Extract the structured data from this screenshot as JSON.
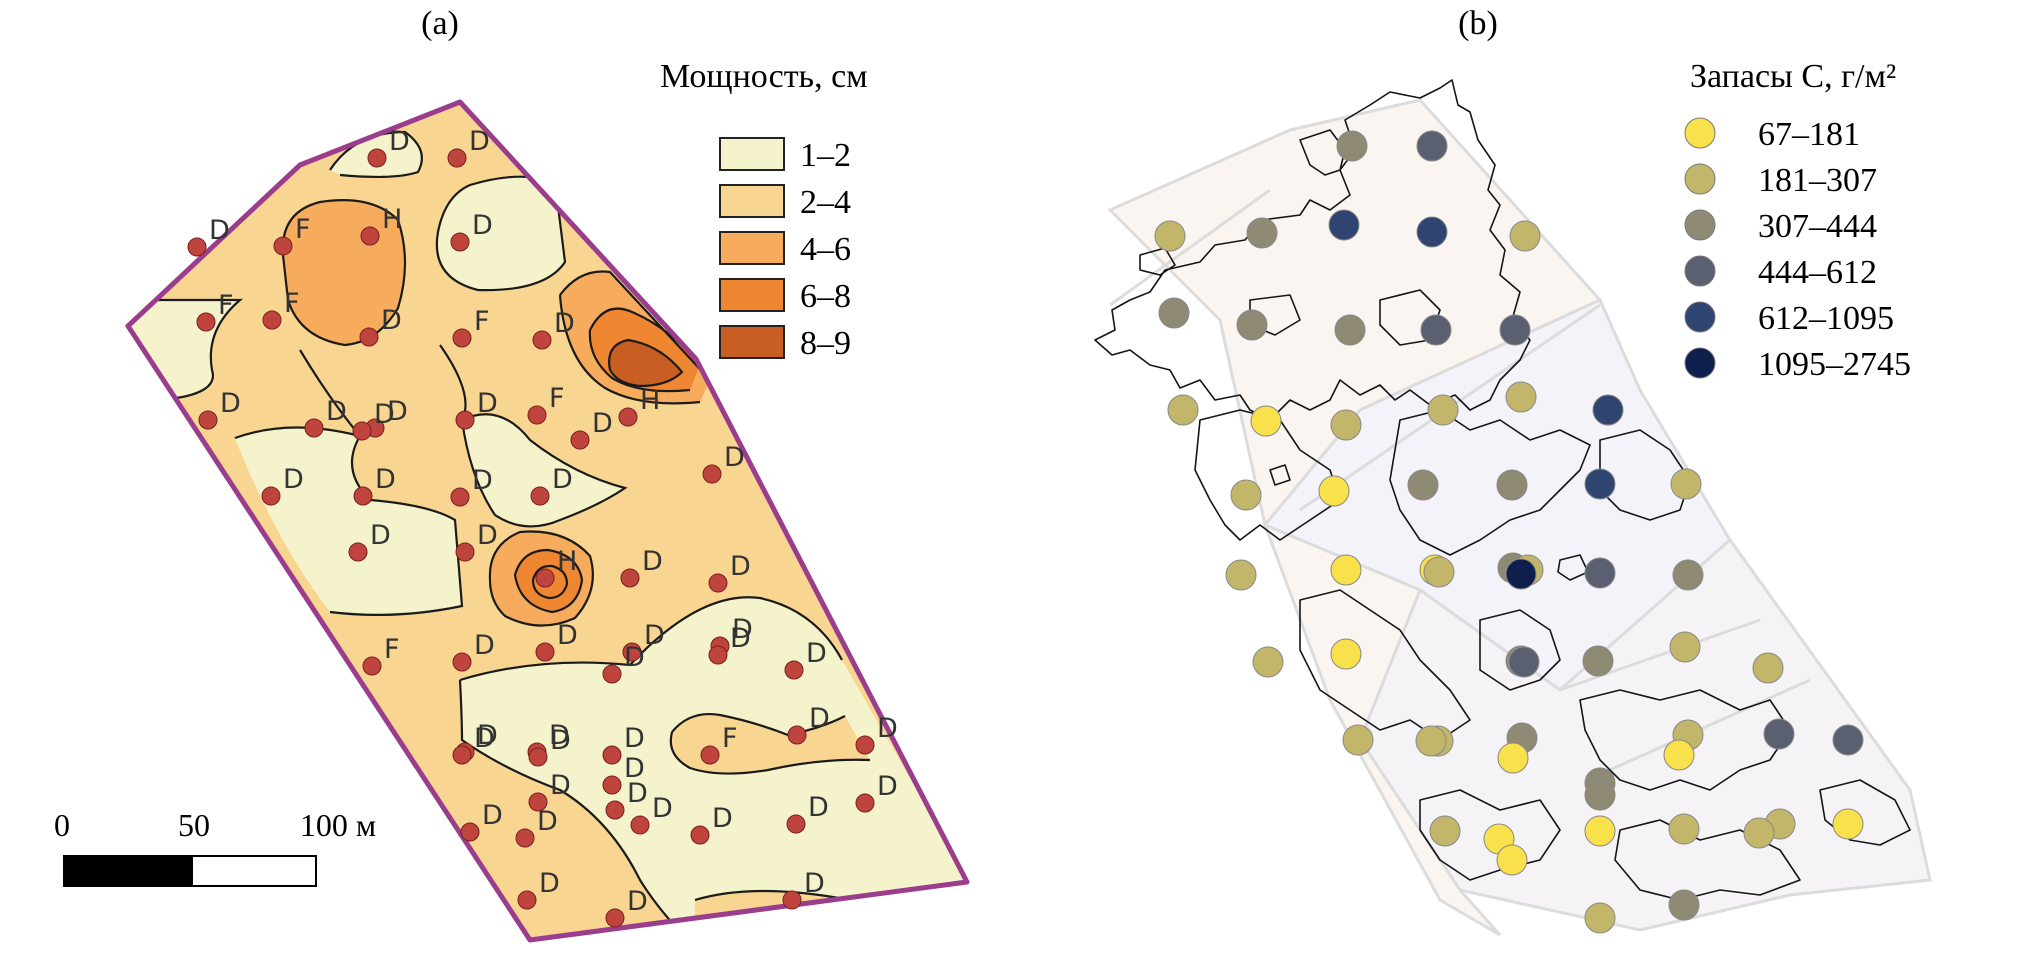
{
  "panels": [
    {
      "id": "a",
      "label": "(a)"
    },
    {
      "id": "b",
      "label": "(b)"
    }
  ],
  "legend_a": {
    "title": "Мощность, см",
    "items": [
      {
        "label": "1–2",
        "color": "#f5f3cb"
      },
      {
        "label": "2–4",
        "color": "#f9d592"
      },
      {
        "label": "4–6",
        "color": "#f6ac5c"
      },
      {
        "label": "6–8",
        "color": "#ef8632"
      },
      {
        "label": "8–9",
        "color": "#c85e22"
      }
    ]
  },
  "legend_b": {
    "title": "Запасы C, г/м²",
    "items": [
      {
        "label": "67–181",
        "color": "#f8e14a"
      },
      {
        "label": "181–307",
        "color": "#c2b66a"
      },
      {
        "label": "307–444",
        "color": "#8e8a74"
      },
      {
        "label": "444–612",
        "color": "#5b6070"
      },
      {
        "label": "612–1095",
        "color": "#2f4470"
      },
      {
        "label": "1095–2745",
        "color": "#0e1f4e"
      }
    ]
  },
  "scale_bar": {
    "ticks": [
      "0",
      "50",
      "100 м"
    ]
  },
  "map_a": {
    "boundary_color": "#9a3d8c",
    "point_color": "#c0443e",
    "point_types": [
      "D",
      "D",
      "F",
      "H",
      "D",
      "D",
      "F",
      "D",
      "F",
      "D",
      "F",
      "F",
      "D",
      "D",
      "D",
      "D",
      "H",
      "D",
      "D",
      "D",
      "D",
      "D",
      "D",
      "D",
      "D",
      "D",
      "H",
      "D",
      "D",
      "F",
      "D",
      "D",
      "D",
      "D",
      "D",
      "D",
      "D",
      "D",
      "F",
      "D",
      "D",
      "D",
      "D",
      "D",
      "D",
      "D",
      "D",
      "D",
      "D",
      "D",
      "D",
      "D",
      "D",
      "D",
      "D",
      "D",
      "D"
    ]
  },
  "map_b": {
    "point_classes": [
      2,
      3,
      4,
      4,
      1,
      2,
      1,
      2,
      2,
      2,
      3,
      3,
      1,
      4,
      0,
      1,
      1,
      1,
      4,
      0,
      1,
      2,
      2,
      1,
      1,
      3,
      2,
      0,
      0,
      1,
      5,
      1,
      2,
      0,
      1,
      2,
      2,
      1,
      3,
      3,
      1,
      1,
      2,
      2,
      0,
      0,
      1,
      1,
      2,
      1,
      3,
      1,
      1,
      0,
      0,
      1,
      0,
      0,
      1,
      2,
      1
    ]
  }
}
